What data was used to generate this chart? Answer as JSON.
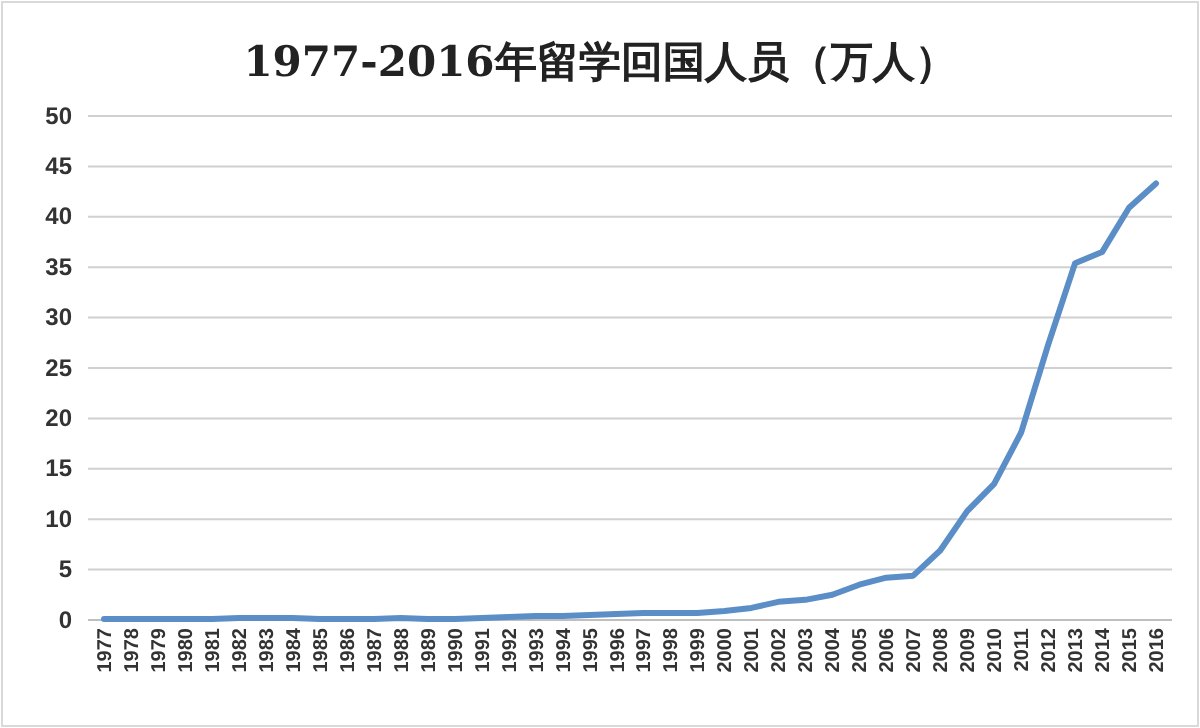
{
  "chart_data": {
    "type": "line",
    "title": "1977-2016年留学回国人员（万人）",
    "categories": [
      "1977",
      "1978",
      "1979",
      "1980",
      "1981",
      "1982",
      "1983",
      "1984",
      "1985",
      "1986",
      "1987",
      "1988",
      "1989",
      "1990",
      "1991",
      "1992",
      "1993",
      "1994",
      "1995",
      "1996",
      "1997",
      "1998",
      "1999",
      "2000",
      "2001",
      "2002",
      "2003",
      "2004",
      "2005",
      "2006",
      "2007",
      "2008",
      "2009",
      "2010",
      "2011",
      "2012",
      "2013",
      "2014",
      "2015",
      "2016"
    ],
    "series": [
      {
        "color": "#5b8ec7",
        "values": [
          0.1,
          0.1,
          0.1,
          0.1,
          0.1,
          0.2,
          0.2,
          0.2,
          0.1,
          0.1,
          0.1,
          0.2,
          0.1,
          0.1,
          0.2,
          0.3,
          0.4,
          0.4,
          0.5,
          0.6,
          0.7,
          0.7,
          0.7,
          0.9,
          1.2,
          1.8,
          2.0,
          2.5,
          3.5,
          4.2,
          4.4,
          6.9,
          10.8,
          13.5,
          18.6,
          27.3,
          35.4,
          36.5,
          40.9,
          43.3
        ]
      }
    ],
    "ylim": [
      0,
      50
    ],
    "yticks": [
      0,
      5,
      10,
      15,
      20,
      25,
      30,
      35,
      40,
      45,
      50
    ],
    "grid": "y",
    "marker": "none",
    "line_style": "solid"
  }
}
